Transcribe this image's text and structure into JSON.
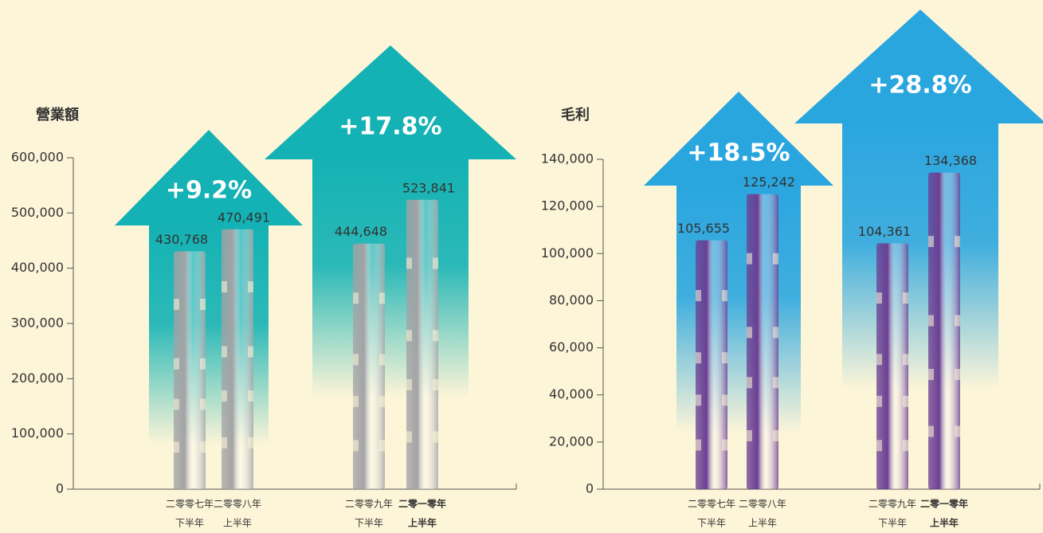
{
  "chart_data": [
    {
      "type": "bar",
      "title": "營業額",
      "categories": [
        [
          "二零零七年",
          "下半年"
        ],
        [
          "二零零八年",
          "上半年"
        ],
        [
          "二零零九年",
          "下半年"
        ],
        [
          "二零一零年",
          "上半年"
        ]
      ],
      "values": [
        430768,
        470491,
        444648,
        523841
      ],
      "value_labels": [
        "430,768",
        "470,491",
        "444,648",
        "523,841"
      ],
      "color": "#a3a3a5",
      "arrow_color": "#14b2b4",
      "annotations": [
        "+9.2%",
        "+17.8%"
      ],
      "ylim": [
        0,
        600000
      ],
      "yticks": [
        0,
        {
          "value": 100000,
          "label": "100,000"
        },
        {
          "value": 200000,
          "label": "200,000"
        },
        {
          "value": 300000,
          "label": "300,000"
        },
        {
          "value": 400000,
          "label": "400,000"
        },
        {
          "value": 500000,
          "label": "500,000"
        },
        {
          "value": 600000,
          "label": "600,000"
        }
      ]
    },
    {
      "type": "bar",
      "title": "毛利",
      "categories": [
        [
          "二零零七年",
          "下半年"
        ],
        [
          "二零零八年",
          "上半年"
        ],
        [
          "二零零九年",
          "下半年"
        ],
        [
          "二零一零年",
          "上半年"
        ]
      ],
      "values": [
        105655,
        125242,
        104361,
        134368
      ],
      "value_labels": [
        "105,655",
        "125,242",
        "104,361",
        "134,368"
      ],
      "color": "#6b3f93",
      "arrow_color": "#2aa6df",
      "annotations": [
        "+18.5%",
        "+28.8%"
      ],
      "ylim": [
        0,
        140000
      ],
      "yticks": [
        0,
        {
          "value": 20000,
          "label": "20,000"
        },
        {
          "value": 40000,
          "label": "40,000"
        },
        {
          "value": 60000,
          "label": "60,000"
        },
        {
          "value": 80000,
          "label": "80,000"
        },
        {
          "value": 100000,
          "label": "100,000"
        },
        {
          "value": 120000,
          "label": "120,000"
        },
        {
          "value": 140000,
          "label": "140,000"
        }
      ]
    }
  ]
}
